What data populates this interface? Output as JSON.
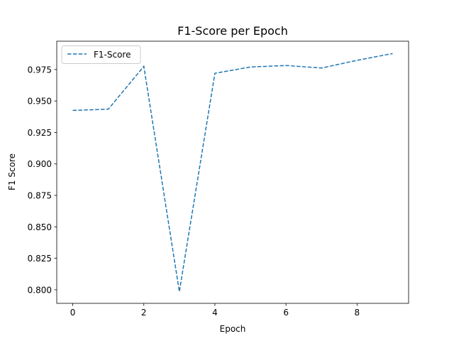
{
  "chart_data": {
    "type": "line",
    "title": "F1-Score per Epoch",
    "xlabel": "Epoch",
    "ylabel": "F1 Score",
    "xlim": [
      -0.45,
      9.45
    ],
    "ylim": [
      0.7892,
      0.9975
    ],
    "x_ticks": [
      0,
      2,
      4,
      6,
      8
    ],
    "y_ticks": [
      0.8,
      0.825,
      0.85,
      0.875,
      0.9,
      0.925,
      0.95,
      0.975
    ],
    "y_tick_labels": [
      "0.800",
      "0.825",
      "0.850",
      "0.875",
      "0.900",
      "0.925",
      "0.950",
      "0.975"
    ],
    "x": [
      0,
      1,
      2,
      3,
      4,
      5,
      6,
      7,
      8,
      9
    ],
    "series": [
      {
        "name": "F1-Score",
        "color": "#1f77b4",
        "linestyle": "dashed",
        "values": [
          0.9425,
          0.9435,
          0.9775,
          0.7985,
          0.972,
          0.977,
          0.9782,
          0.9762,
          0.9823,
          0.9877
        ]
      }
    ],
    "grid": false,
    "legend_position": "upper-left"
  }
}
